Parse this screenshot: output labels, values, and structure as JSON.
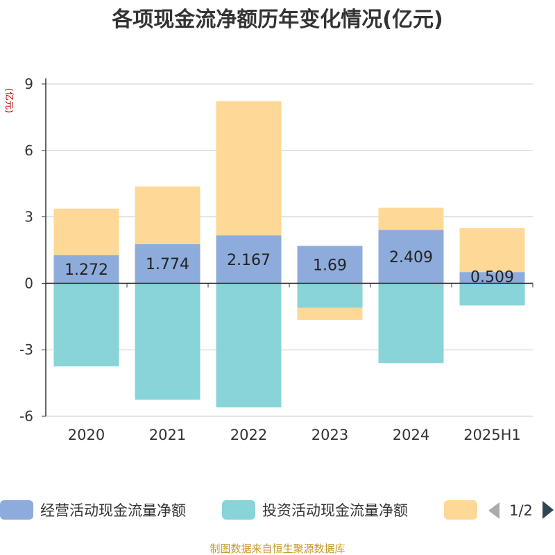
{
  "chart_data": {
    "type": "bar",
    "stacked": true,
    "title": "各项现金流净额历年变化情况(亿元)",
    "ylabel": "(亿元)",
    "xlabel": "",
    "categories": [
      "2020",
      "2021",
      "2022",
      "2023",
      "2024",
      "2025H1"
    ],
    "ylim": [
      -6,
      9
    ],
    "yticks": [
      -6,
      -3,
      0,
      3,
      6,
      9
    ],
    "grid": true,
    "series": [
      {
        "name": "经营活动现金流量净额",
        "color": "#8eacdb",
        "values": [
          1.272,
          1.774,
          2.167,
          1.69,
          2.409,
          0.509
        ],
        "labels": [
          "1.272",
          "1.774",
          "2.167",
          "1.69",
          "2.409",
          "0.509"
        ]
      },
      {
        "name": "投资活动现金流量净额",
        "color": "#88d4d8",
        "values": [
          -3.75,
          -5.25,
          -5.6,
          -1.1,
          -3.6,
          -1.0
        ]
      },
      {
        "name": "",
        "color": "#fed896",
        "values": [
          2.1,
          2.6,
          6.05,
          -0.55,
          1.0,
          1.98
        ]
      }
    ],
    "legend": {
      "placement": "bottom",
      "page": "1/2"
    }
  },
  "source_note": "制图数据来自恒生聚源数据库"
}
